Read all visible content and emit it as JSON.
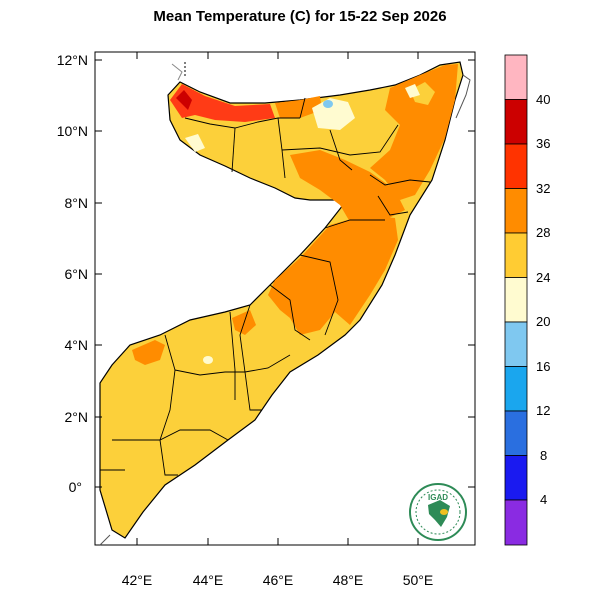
{
  "title": "Mean Temperature (C) for 15-22 Sep 2026",
  "axes": {
    "lat_ticks": [
      "12°N",
      "10°N",
      "8°N",
      "6°N",
      "4°N",
      "2°N",
      "0°"
    ],
    "lon_ticks": [
      "42°E",
      "44°E",
      "46°E",
      "48°E",
      "50°E"
    ]
  },
  "colorbar": {
    "labels": [
      "40",
      "36",
      "32",
      "28",
      "24",
      "20",
      "16",
      "12",
      "8",
      "4"
    ],
    "colors": [
      "#ffb6c1",
      "#cc0000",
      "#ff3300",
      "#ff8c00",
      "#ffcc33",
      "#fffbd0",
      "#7fc8f0",
      "#1aa6ee",
      "#2a6fe0",
      "#1a1af0",
      "#8a2be2"
    ]
  },
  "logo": {
    "text": "IGAD"
  }
}
